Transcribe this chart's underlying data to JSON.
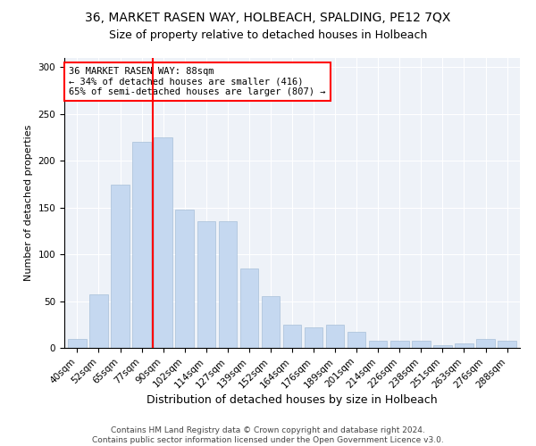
{
  "title1": "36, MARKET RASEN WAY, HOLBEACH, SPALDING, PE12 7QX",
  "title2": "Size of property relative to detached houses in Holbeach",
  "xlabel": "Distribution of detached houses by size in Holbeach",
  "ylabel": "Number of detached properties",
  "categories": [
    "40sqm",
    "52sqm",
    "65sqm",
    "77sqm",
    "90sqm",
    "102sqm",
    "114sqm",
    "127sqm",
    "139sqm",
    "152sqm",
    "164sqm",
    "176sqm",
    "189sqm",
    "201sqm",
    "214sqm",
    "226sqm",
    "238sqm",
    "251sqm",
    "263sqm",
    "276sqm",
    "288sqm"
  ],
  "values": [
    10,
    57,
    175,
    220,
    225,
    148,
    135,
    135,
    85,
    55,
    25,
    22,
    25,
    17,
    8,
    8,
    8,
    3,
    5,
    10,
    8
  ],
  "bar_color": "#c5d8f0",
  "bar_edge_color": "#a8c0d8",
  "vline_color": "red",
  "vline_x": 3.5,
  "annotation_text": "36 MARKET RASEN WAY: 88sqm\n← 34% of detached houses are smaller (416)\n65% of semi-detached houses are larger (807) →",
  "annotation_box_color": "white",
  "annotation_box_edge": "red",
  "ylim": [
    0,
    310
  ],
  "yticks": [
    0,
    50,
    100,
    150,
    200,
    250,
    300
  ],
  "background_color": "#eef2f8",
  "footer": "Contains HM Land Registry data © Crown copyright and database right 2024.\nContains public sector information licensed under the Open Government Licence v3.0.",
  "title1_fontsize": 10,
  "title2_fontsize": 9,
  "xlabel_fontsize": 9,
  "ylabel_fontsize": 8,
  "tick_fontsize": 7.5,
  "annotation_fontsize": 7.5,
  "footer_fontsize": 6.5
}
